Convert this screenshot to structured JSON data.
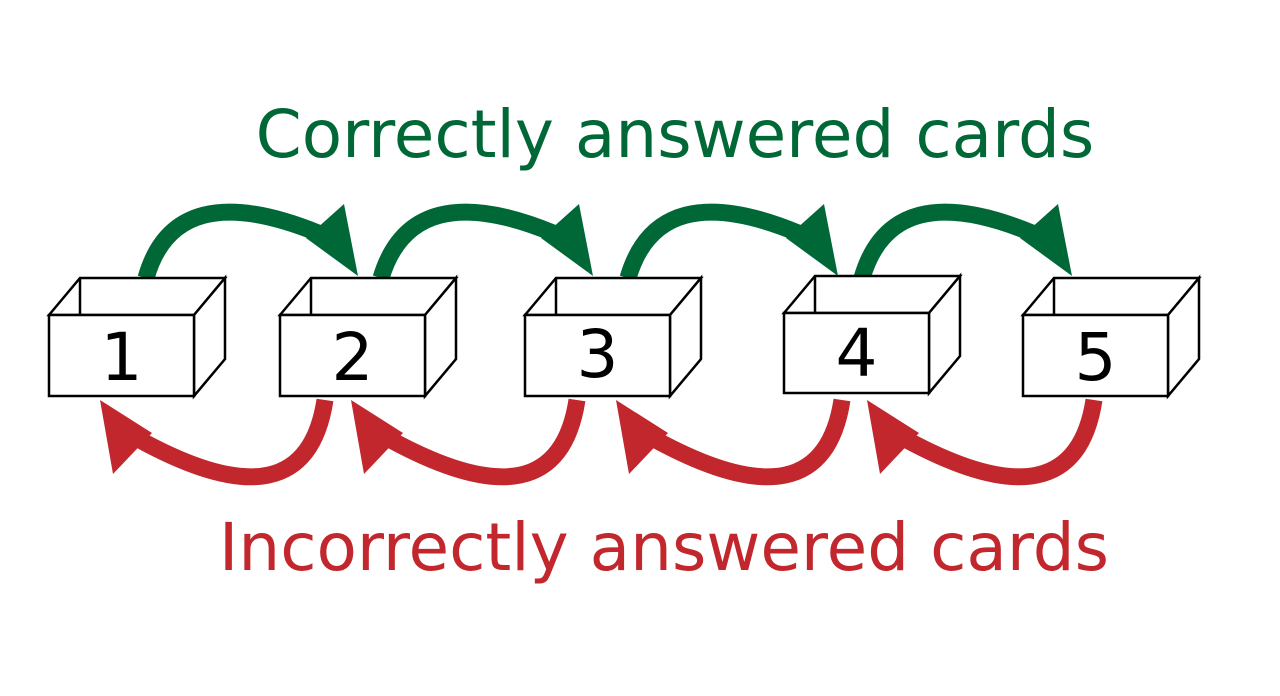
{
  "captions": {
    "correct": "Correctly answered cards",
    "incorrect": "Incorrectly answered cards"
  },
  "colors": {
    "correct": "#006837",
    "incorrect": "#c1272d",
    "box_stroke": "#000000",
    "box_fill": "#ffffff"
  },
  "boxes": [
    {
      "label": "1"
    },
    {
      "label": "2"
    },
    {
      "label": "3"
    },
    {
      "label": "4"
    },
    {
      "label": "5"
    }
  ],
  "promotions": [
    {
      "from": "1",
      "to": "2"
    },
    {
      "from": "2",
      "to": "3"
    },
    {
      "from": "3",
      "to": "4"
    },
    {
      "from": "4",
      "to": "5"
    }
  ],
  "demotions": [
    {
      "from": "2",
      "to": "1"
    },
    {
      "from": "3",
      "to": "2"
    },
    {
      "from": "4",
      "to": "3"
    },
    {
      "from": "5",
      "to": "4"
    }
  ]
}
